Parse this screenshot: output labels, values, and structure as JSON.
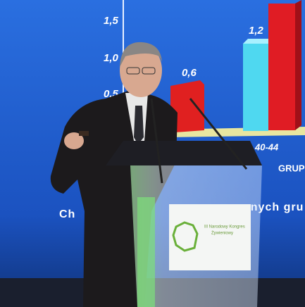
{
  "screen": {
    "axis_labels": [
      "1,5",
      "1,0",
      "0,5"
    ],
    "bar_labels": [
      "0,6",
      "1,2"
    ],
    "category": "40-44",
    "group": "GRUP",
    "caption_left": "Ch",
    "caption_right": "nnych gru"
  },
  "podium_sign": {
    "lines": [
      "III Narodowy Kongres",
      "Żywieniowy"
    ]
  }
}
